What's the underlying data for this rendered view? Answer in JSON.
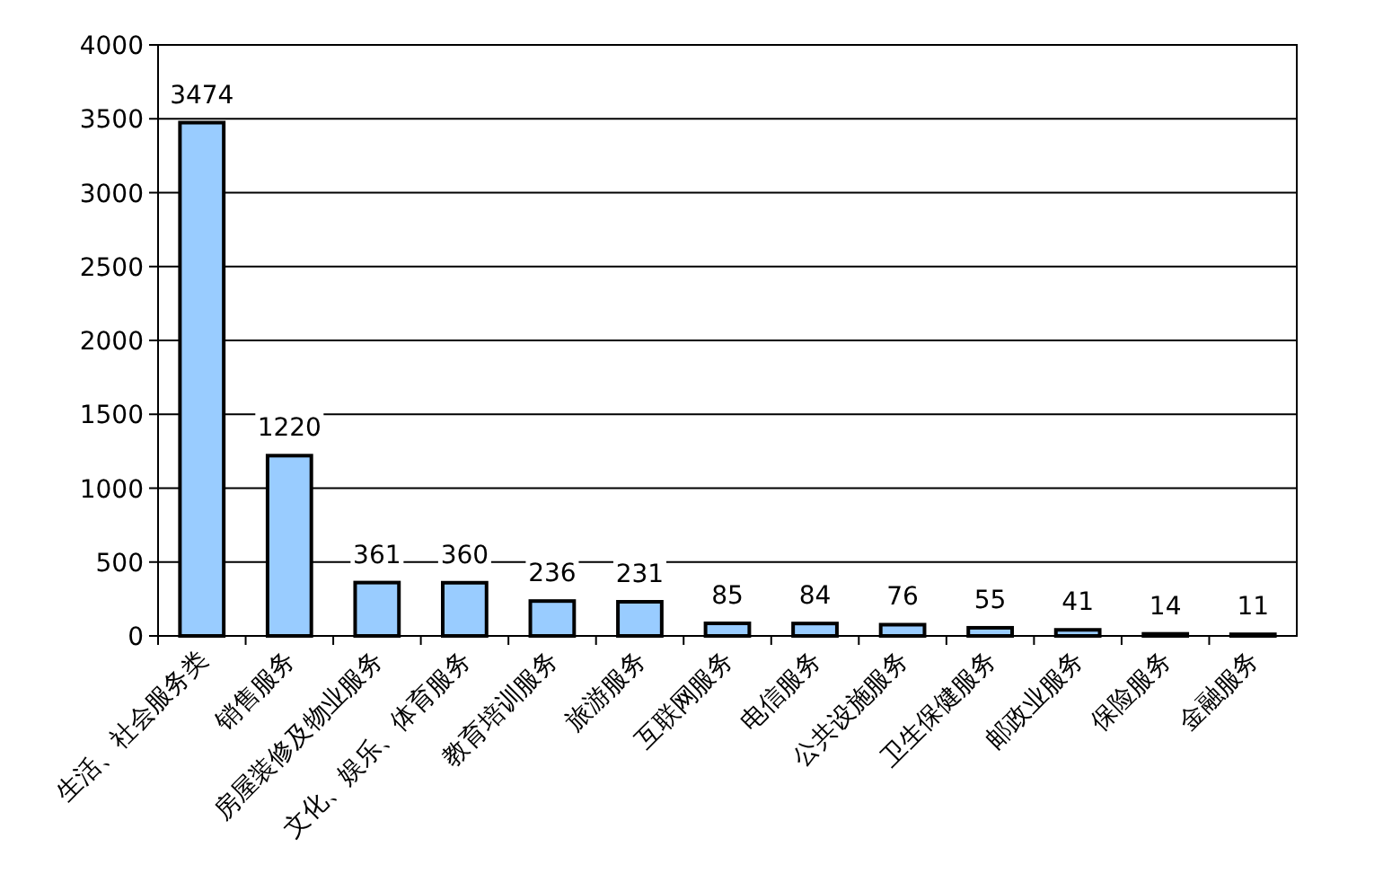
{
  "chart_data": {
    "type": "bar",
    "categories": [
      "生活、社会服务类",
      "销售服务",
      "房屋装修及物业服务",
      "文化、娱乐、体育服务",
      "教育培训服务",
      "旅游服务",
      "互联网服务",
      "电信服务",
      "公共设施服务",
      "卫生保健服务",
      "邮政业服务",
      "保险服务",
      "金融服务"
    ],
    "values": [
      3474,
      1220,
      361,
      360,
      236,
      231,
      85,
      84,
      76,
      55,
      41,
      14,
      11
    ],
    "color": "#99ccff",
    "ylim": [
      0,
      4000
    ],
    "yticks": [
      0,
      500,
      1000,
      1500,
      2000,
      2500,
      3000,
      3500,
      4000
    ],
    "grid": "y",
    "data_labels": true
  }
}
